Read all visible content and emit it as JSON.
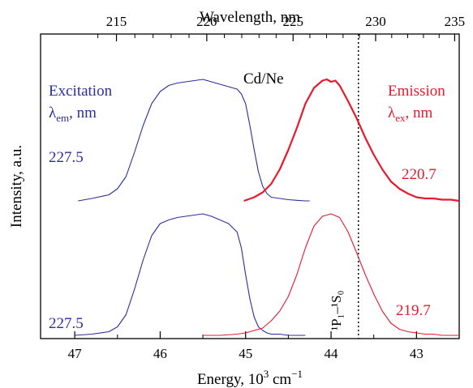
{
  "chart_data": {
    "type": "line",
    "title": "Cd/Ne",
    "xlabel": "Energy, 10³ cm⁻¹",
    "xlabel_base": "Energy, 10",
    "xlabel_exp1": "3",
    "xlabel_unit": " cm",
    "xlabel_exp2": "−1",
    "x2label": "Wavelength, nm",
    "ylabel": "Intensity, a.u.",
    "xlim": [
      47.4,
      42.5
    ],
    "x_ticks": [
      47,
      46,
      45,
      44,
      43
    ],
    "x2_ticks": [
      215,
      220,
      225,
      230,
      235
    ],
    "grid": false,
    "transition_label": "¹P₁–¹S₀",
    "transition_energy": 43.68,
    "colors": {
      "excitation": "#2b2f9a",
      "emission": "#e8192c"
    },
    "labels": {
      "excitation": "Excitation",
      "excitation_sym": "λ",
      "excitation_sub": "em",
      "excitation_unit": ", nm",
      "emission": "Emission",
      "emission_sym": "λ",
      "emission_sub": "ex",
      "emission_unit": ", nm",
      "upper_excitation_value": "227.5",
      "lower_excitation_value": "227.5",
      "upper_emission_value": "220.7",
      "lower_emission_value": "219.7"
    },
    "series": [
      {
        "name": "227.5",
        "group": "upper",
        "kind": "excitation",
        "x": [
          46.96,
          46.8,
          46.6,
          46.5,
          46.4,
          46.3,
          46.2,
          46.1,
          46.0,
          45.9,
          45.8,
          45.7,
          45.6,
          45.5,
          45.4,
          45.3,
          45.2,
          45.1,
          45.05,
          45.0,
          44.95,
          44.9,
          44.85,
          44.8,
          44.75,
          44.7,
          44.6,
          44.5,
          44.4,
          44.3,
          44.25
        ],
        "y": [
          0.0,
          0.02,
          0.05,
          0.1,
          0.2,
          0.4,
          0.62,
          0.8,
          0.9,
          0.95,
          0.97,
          0.98,
          0.99,
          1.0,
          0.98,
          0.96,
          0.94,
          0.92,
          0.88,
          0.8,
          0.62,
          0.42,
          0.24,
          0.12,
          0.06,
          0.03,
          0.02,
          0.01,
          0.005,
          0.0,
          0.0
        ]
      },
      {
        "name": "220.7",
        "group": "upper",
        "kind": "emission",
        "x": [
          45.02,
          44.9,
          44.8,
          44.7,
          44.6,
          44.5,
          44.4,
          44.3,
          44.2,
          44.1,
          44.05,
          44.0,
          43.95,
          43.9,
          43.8,
          43.7,
          43.6,
          43.5,
          43.4,
          43.3,
          43.2,
          43.1,
          43.0,
          42.9,
          42.8,
          42.7,
          42.6,
          42.5
        ],
        "y": [
          0.0,
          0.03,
          0.07,
          0.14,
          0.26,
          0.42,
          0.6,
          0.8,
          0.93,
          0.99,
          1.0,
          0.98,
          0.99,
          0.95,
          0.82,
          0.68,
          0.52,
          0.38,
          0.26,
          0.16,
          0.1,
          0.06,
          0.03,
          0.02,
          0.02,
          0.01,
          0.01,
          0.0
        ]
      },
      {
        "name": "227.5",
        "group": "lower",
        "kind": "excitation",
        "x": [
          47.0,
          46.8,
          46.6,
          46.5,
          46.4,
          46.3,
          46.2,
          46.1,
          46.0,
          45.9,
          45.8,
          45.7,
          45.6,
          45.5,
          45.4,
          45.3,
          45.2,
          45.1,
          45.05,
          45.0,
          44.95,
          44.9,
          44.85,
          44.8,
          44.75,
          44.7,
          44.6,
          44.5,
          44.4,
          44.3
        ],
        "y": [
          0.0,
          0.01,
          0.03,
          0.07,
          0.17,
          0.38,
          0.62,
          0.82,
          0.92,
          0.95,
          0.97,
          0.98,
          0.99,
          1.0,
          0.98,
          0.95,
          0.92,
          0.85,
          0.72,
          0.5,
          0.3,
          0.15,
          0.07,
          0.04,
          0.02,
          0.01,
          0.01,
          0.0,
          0.0,
          0.0
        ]
      },
      {
        "name": "219.7",
        "group": "lower",
        "kind": "emission",
        "x": [
          45.5,
          45.3,
          45.1,
          45.0,
          44.8,
          44.7,
          44.6,
          44.5,
          44.4,
          44.3,
          44.2,
          44.1,
          44.0,
          43.9,
          43.8,
          43.7,
          43.6,
          43.5,
          43.4,
          43.3,
          43.2,
          43.1,
          43.0,
          42.9,
          42.8,
          42.7,
          42.6,
          42.5
        ],
        "y": [
          0.0,
          0.0,
          0.01,
          0.02,
          0.06,
          0.12,
          0.2,
          0.32,
          0.5,
          0.72,
          0.9,
          0.98,
          1.0,
          0.97,
          0.85,
          0.68,
          0.5,
          0.34,
          0.2,
          0.1,
          0.05,
          0.03,
          0.02,
          0.01,
          0.01,
          0.0,
          0.0,
          0.0
        ]
      }
    ]
  }
}
